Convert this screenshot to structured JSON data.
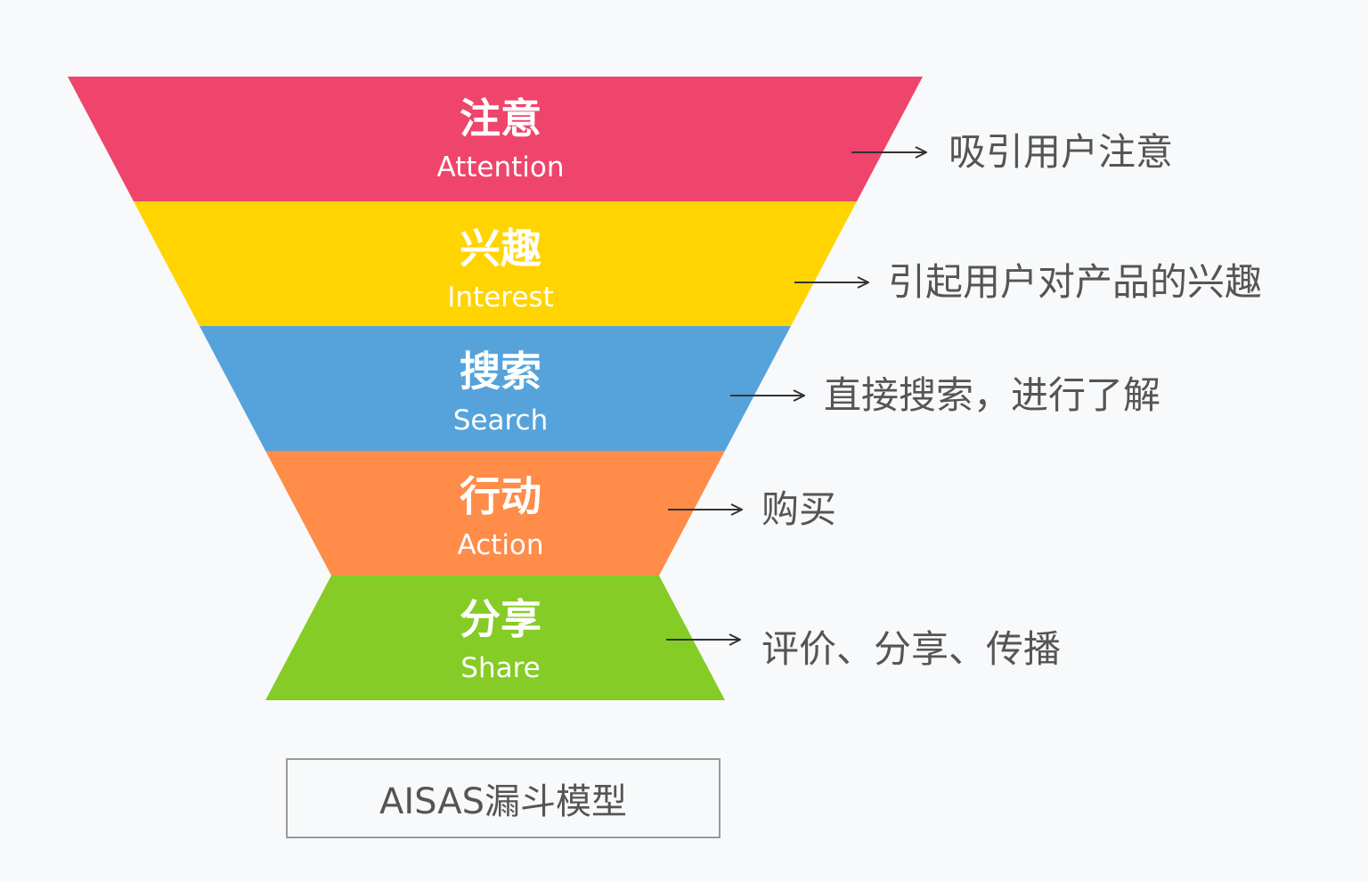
{
  "title": "AISAS漏斗模型",
  "stages": [
    {
      "zh": "注意",
      "en": "Attention",
      "desc": "吸引用户注意",
      "color": "#EF446B"
    },
    {
      "zh": "兴趣",
      "en": "Interest",
      "desc": "引起用户对产品的兴趣",
      "color": "#FFD400"
    },
    {
      "zh": "搜索",
      "en": "Search",
      "desc": "直接搜索，进行了解",
      "color": "#55A3DA"
    },
    {
      "zh": "行动",
      "en": "Action",
      "desc": "购买",
      "color": "#FF8C48"
    },
    {
      "zh": "分享",
      "en": "Share",
      "desc": "评价、分享、传播",
      "color": "#85CC26"
    }
  ]
}
